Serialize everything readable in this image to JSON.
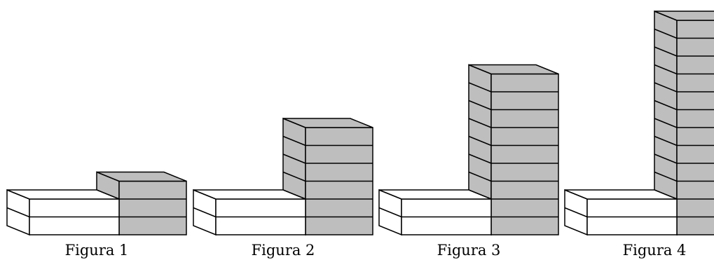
{
  "figures": [
    {
      "caption": "Figura 1",
      "white_blocks": 2,
      "gray_blocks": 3
    },
    {
      "caption": "Figura 2",
      "white_blocks": 2,
      "gray_blocks": 6
    },
    {
      "caption": "Figura 3",
      "white_blocks": 2,
      "gray_blocks": 9
    },
    {
      "caption": "Figura 4",
      "white_blocks": 2,
      "gray_blocks": 12
    }
  ],
  "colors": {
    "gray_block": "#bebebe",
    "white_block": "#ffffff",
    "stroke": "#000000"
  }
}
